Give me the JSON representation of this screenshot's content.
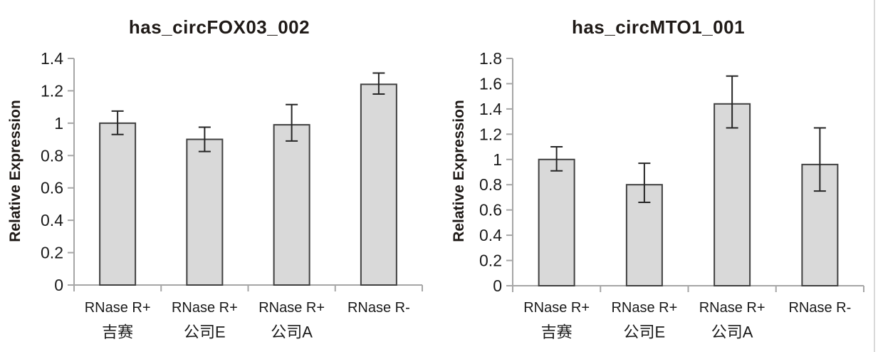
{
  "figure": {
    "background": "#ffffff",
    "border_right_color": "#d9d9d9",
    "text_color": "#1a1a1a"
  },
  "chart_data": [
    {
      "type": "bar",
      "title": "has_circFOX03_002",
      "ylabel": "Relative Expression",
      "xlabel": "",
      "ylim": [
        0,
        1.4
      ],
      "ytick_labels": [
        "0",
        "0.2",
        "0.4",
        "0.6",
        "0.8",
        "1",
        "1.2",
        "1.4"
      ],
      "grid": false,
      "legend": "none",
      "bar_fill": "#d9d9d9",
      "bar_stroke": "#404040",
      "axis_color": "#a6a6a6",
      "error_color": "#262626",
      "categories": [
        "RNase R+",
        "RNase R+",
        "RNase R+",
        "RNase R-"
      ],
      "category_sublabels": [
        "吉赛",
        "公司E",
        "公司A",
        ""
      ],
      "values": [
        1.0,
        0.9,
        0.99,
        1.24
      ],
      "error_low": [
        0.93,
        0.825,
        0.89,
        1.18
      ],
      "error_high": [
        1.075,
        0.975,
        1.115,
        1.31
      ]
    },
    {
      "type": "bar",
      "title": "has_circMTO1_001",
      "ylabel": "Relative Expression",
      "xlabel": "",
      "ylim": [
        0,
        1.8
      ],
      "ytick_labels": [
        "0",
        "0.2",
        "0.4",
        "0.6",
        "0.8",
        "1",
        "1.2",
        "1.4",
        "1.6",
        "1.8"
      ],
      "grid": false,
      "legend": "none",
      "bar_fill": "#d9d9d9",
      "bar_stroke": "#404040",
      "axis_color": "#a6a6a6",
      "error_color": "#262626",
      "categories": [
        "RNase R+",
        "RNase R+",
        "RNase R+",
        "RNase R-"
      ],
      "category_sublabels": [
        "吉赛",
        "公司E",
        "公司A",
        ""
      ],
      "values": [
        1.0,
        0.8,
        1.44,
        0.96
      ],
      "error_low": [
        0.91,
        0.66,
        1.25,
        0.75
      ],
      "error_high": [
        1.1,
        0.97,
        1.66,
        1.25
      ]
    }
  ]
}
